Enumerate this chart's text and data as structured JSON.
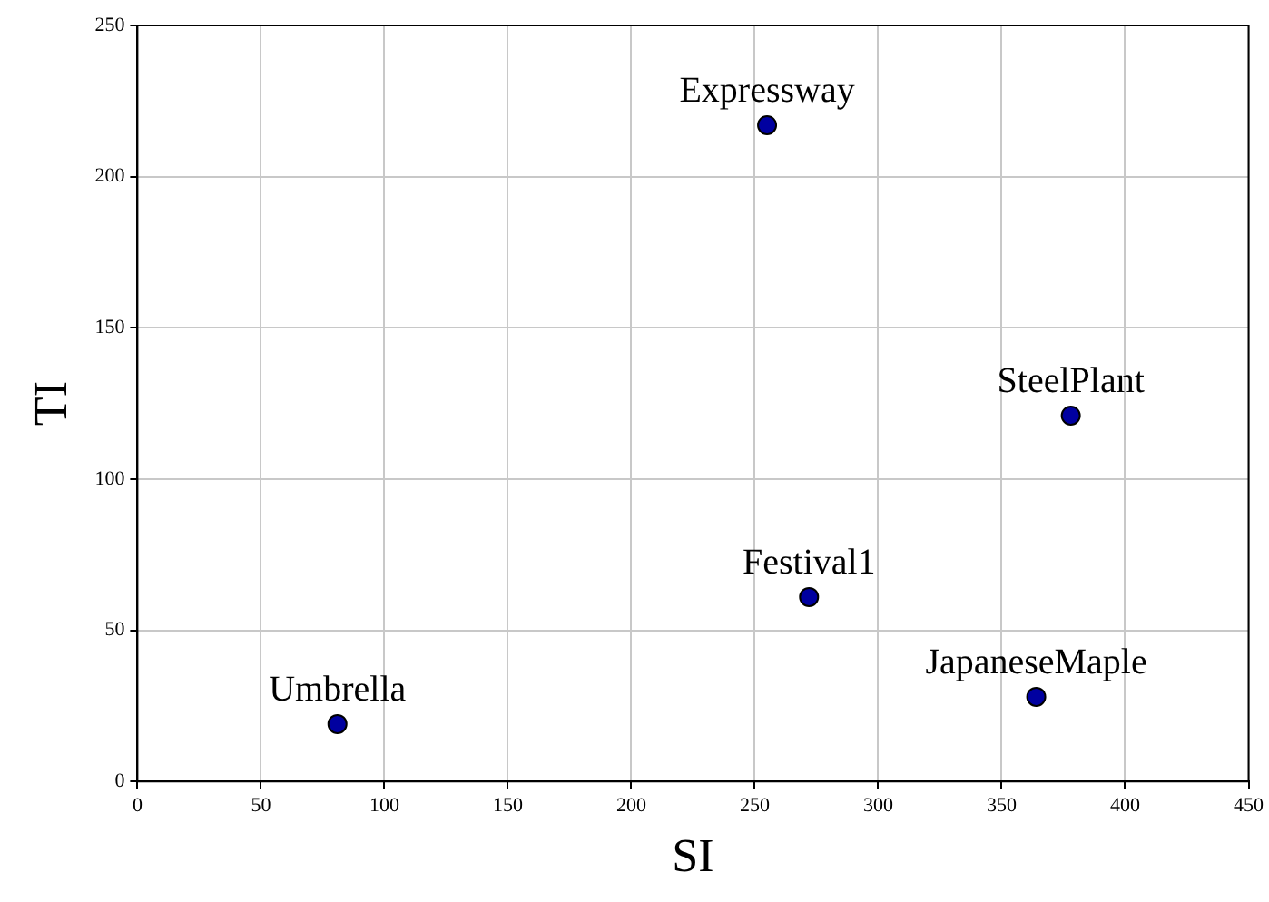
{
  "chart_data": {
    "type": "scatter",
    "xlabel": "SI",
    "ylabel": "TI",
    "x": [
      255,
      378,
      272,
      364,
      81
    ],
    "values": [
      217,
      121,
      61,
      28,
      19
    ],
    "color": "#0000a0",
    "marker": "circle",
    "xlim": [
      0,
      450
    ],
    "xticks": [
      0,
      50,
      100,
      150,
      200,
      250,
      300,
      350,
      400,
      450
    ],
    "ylim": [
      0,
      250
    ],
    "yticks": [
      0,
      50,
      100,
      150,
      200,
      250
    ],
    "grid": true,
    "legend": false,
    "annotations": [
      {
        "text": "Expressway",
        "x": 255,
        "y": 217
      },
      {
        "text": "SteelPlant",
        "x": 378,
        "y": 121
      },
      {
        "text": "Festival1",
        "x": 272,
        "y": 61
      },
      {
        "text": "JapaneseMaple",
        "x": 364,
        "y": 28
      },
      {
        "text": "Umbrella",
        "x": 81,
        "y": 19
      }
    ]
  }
}
